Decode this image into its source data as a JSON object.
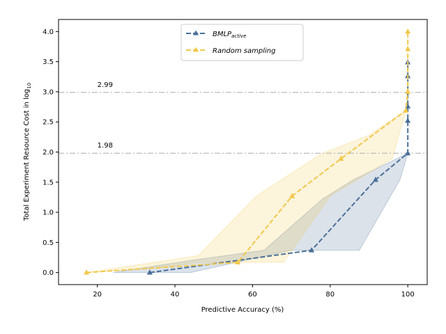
{
  "chart_data": {
    "type": "line",
    "xlabel": "Predictive Accuracy (%)",
    "ylabel": "Total Experiment Resource Cost in log",
    "ylabel_subscript": "10",
    "xlim": [
      10,
      105
    ],
    "ylim": [
      -0.2,
      4.2
    ],
    "xticks": [
      20,
      40,
      60,
      80,
      100
    ],
    "yticks": [
      0.0,
      0.5,
      1.0,
      1.5,
      2.0,
      2.5,
      3.0,
      3.5,
      4.0
    ],
    "grid": false,
    "legend_position": "top-center",
    "series": [
      {
        "name": "BMLP",
        "name_subscript": "active",
        "color": "#4a6f98",
        "marker": "triangle",
        "linestyle": "dashed",
        "x": [
          33.5,
          75.2,
          91.7,
          100,
          100,
          100,
          100,
          100
        ],
        "y": [
          0.0,
          0.37,
          1.54,
          1.98,
          2.52,
          2.76,
          3.26,
          3.49
        ],
        "band_upper": [
          [
            24,
            0.0
          ],
          [
            44,
            0.2
          ],
          [
            63,
            0.37
          ],
          [
            78,
            1.22
          ],
          [
            86,
            1.54
          ],
          [
            100,
            1.98
          ]
        ],
        "band_lower": [
          [
            24,
            0.0
          ],
          [
            44,
            0.0
          ],
          [
            70,
            0.37
          ],
          [
            87.5,
            0.37
          ],
          [
            98,
            1.54
          ],
          [
            100,
            1.98
          ]
        ]
      },
      {
        "name": "Random sampling",
        "color": "#f2c84b",
        "marker": "triangle",
        "linestyle": "dashed",
        "x": [
          17.2,
          56.2,
          70.2,
          82.8,
          99.5,
          100,
          100,
          100
        ],
        "y": [
          0.0,
          0.17,
          1.27,
          1.89,
          2.69,
          3.0,
          3.71,
          4.0
        ],
        "band_upper": [
          [
            17.2,
            0.0
          ],
          [
            46,
            0.28
          ],
          [
            61,
            1.27
          ],
          [
            78,
            1.98
          ],
          [
            90,
            2.28
          ],
          [
            99.5,
            2.69
          ]
        ],
        "band_lower": [
          [
            17.2,
            0.0
          ],
          [
            36,
            0.08
          ],
          [
            46,
            0.17
          ],
          [
            68,
            0.17
          ],
          [
            80,
            1.27
          ],
          [
            96,
            1.89
          ],
          [
            99.5,
            2.69
          ]
        ]
      }
    ],
    "reference_lines": [
      {
        "y": 2.99,
        "label": "2.99"
      },
      {
        "y": 1.98,
        "label": "1.98"
      }
    ]
  }
}
